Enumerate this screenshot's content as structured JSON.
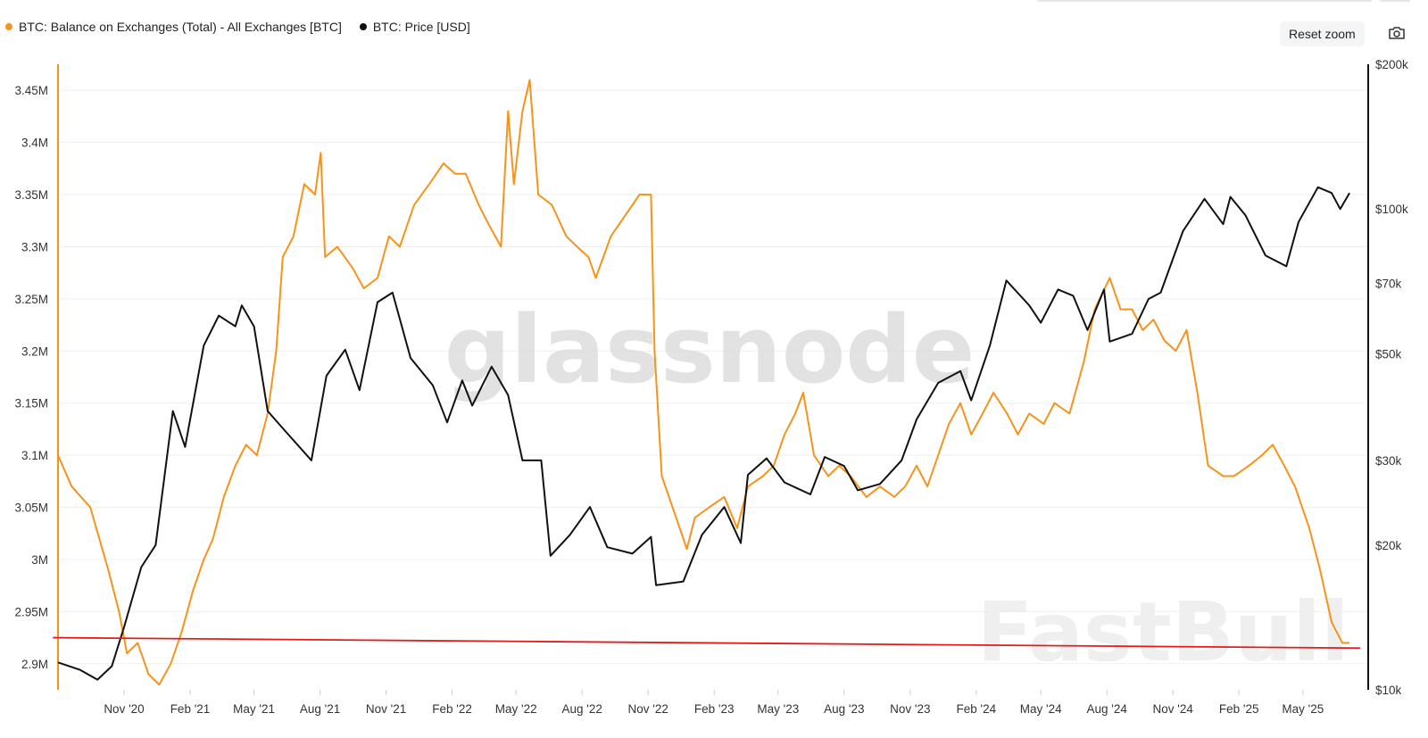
{
  "legend": [
    {
      "label": "BTC: Balance on Exchanges (Total) - All Exchanges [BTC]",
      "color": "#f7931a"
    },
    {
      "label": "BTC: Price [USD]",
      "color": "#111111"
    }
  ],
  "toolbar": {
    "reset_zoom_label": "Reset zoom",
    "camera_icon": "camera-icon"
  },
  "watermarks": {
    "center": "glassnode",
    "corner": "FastBull"
  },
  "chart_data": {
    "type": "line",
    "title": "",
    "x_range": [
      "2020-08-01",
      "2025-07-31"
    ],
    "x_ticks": [
      "Nov '20",
      "Feb '21",
      "May '21",
      "Aug '21",
      "Nov '21",
      "Feb '22",
      "May '22",
      "Aug '22",
      "Nov '22",
      "Feb '23",
      "May '23",
      "Aug '23",
      "Nov '23",
      "Feb '24",
      "May '24",
      "Aug '24",
      "Nov '24",
      "Feb '25",
      "May '25"
    ],
    "y_left": {
      "range": [
        2.875,
        3.475
      ],
      "ticks": [
        2.9,
        2.95,
        3.0,
        3.05,
        3.1,
        3.15,
        3.2,
        3.25,
        3.3,
        3.35,
        3.4,
        3.45
      ],
      "tick_labels": [
        "2.9M",
        "2.95M",
        "3M",
        "3.05M",
        "3.1M",
        "3.15M",
        "3.2M",
        "3.25M",
        "3.3M",
        "3.35M",
        "3.4M",
        "3.45M"
      ],
      "unit": "BTC (millions)"
    },
    "y_right": {
      "scale": "log",
      "range": [
        10000,
        200000
      ],
      "ticks": [
        10000,
        20000,
        30000,
        50000,
        70000,
        100000,
        200000
      ],
      "tick_labels": [
        "$10k",
        "$20k",
        "$30k",
        "$50k",
        "$70k",
        "$100k",
        "$200k"
      ]
    },
    "series": [
      {
        "name": "BTC: Balance on Exchanges (Total) - All Exchanges [BTC]",
        "axis": "left",
        "color": "#f7931a",
        "points": [
          [
            "2020-08-01",
            3.1
          ],
          [
            "2020-08-20",
            3.07
          ],
          [
            "2020-09-15",
            3.05
          ],
          [
            "2020-10-10",
            2.99
          ],
          [
            "2020-10-25",
            2.95
          ],
          [
            "2020-11-05",
            2.91
          ],
          [
            "2020-11-20",
            2.92
          ],
          [
            "2020-12-05",
            2.89
          ],
          [
            "2020-12-20",
            2.88
          ],
          [
            "2021-01-05",
            2.9
          ],
          [
            "2021-01-20",
            2.93
          ],
          [
            "2021-02-05",
            2.97
          ],
          [
            "2021-02-20",
            3.0
          ],
          [
            "2021-03-05",
            3.02
          ],
          [
            "2021-03-20",
            3.06
          ],
          [
            "2021-04-05",
            3.09
          ],
          [
            "2021-04-20",
            3.11
          ],
          [
            "2021-05-05",
            3.1
          ],
          [
            "2021-05-20",
            3.14
          ],
          [
            "2021-06-01",
            3.2
          ],
          [
            "2021-06-10",
            3.29
          ],
          [
            "2021-06-25",
            3.31
          ],
          [
            "2021-07-10",
            3.36
          ],
          [
            "2021-07-25",
            3.35
          ],
          [
            "2021-08-02",
            3.39
          ],
          [
            "2021-08-08",
            3.29
          ],
          [
            "2021-08-25",
            3.3
          ],
          [
            "2021-09-15",
            3.28
          ],
          [
            "2021-10-01",
            3.26
          ],
          [
            "2021-10-20",
            3.27
          ],
          [
            "2021-11-05",
            3.31
          ],
          [
            "2021-11-20",
            3.3
          ],
          [
            "2021-12-10",
            3.34
          ],
          [
            "2021-12-31",
            3.36
          ],
          [
            "2022-01-20",
            3.38
          ],
          [
            "2022-02-05",
            3.37
          ],
          [
            "2022-02-20",
            3.37
          ],
          [
            "2022-03-10",
            3.34
          ],
          [
            "2022-03-25",
            3.32
          ],
          [
            "2022-04-10",
            3.3
          ],
          [
            "2022-04-20",
            3.43
          ],
          [
            "2022-04-28",
            3.36
          ],
          [
            "2022-05-10",
            3.43
          ],
          [
            "2022-05-20",
            3.46
          ],
          [
            "2022-06-01",
            3.35
          ],
          [
            "2022-06-20",
            3.34
          ],
          [
            "2022-07-10",
            3.31
          ],
          [
            "2022-07-25",
            3.3
          ],
          [
            "2022-08-10",
            3.29
          ],
          [
            "2022-08-20",
            3.27
          ],
          [
            "2022-09-10",
            3.31
          ],
          [
            "2022-09-30",
            3.33
          ],
          [
            "2022-10-20",
            3.35
          ],
          [
            "2022-11-05",
            3.35
          ],
          [
            "2022-11-10",
            3.2
          ],
          [
            "2022-11-20",
            3.08
          ],
          [
            "2022-12-10",
            3.04
          ],
          [
            "2022-12-25",
            3.01
          ],
          [
            "2023-01-05",
            3.04
          ],
          [
            "2023-01-25",
            3.05
          ],
          [
            "2023-02-15",
            3.06
          ],
          [
            "2023-03-05",
            3.03
          ],
          [
            "2023-03-20",
            3.07
          ],
          [
            "2023-04-10",
            3.08
          ],
          [
            "2023-04-25",
            3.09
          ],
          [
            "2023-05-10",
            3.12
          ],
          [
            "2023-05-25",
            3.14
          ],
          [
            "2023-06-05",
            3.16
          ],
          [
            "2023-06-20",
            3.1
          ],
          [
            "2023-07-10",
            3.08
          ],
          [
            "2023-07-25",
            3.09
          ],
          [
            "2023-08-10",
            3.08
          ],
          [
            "2023-09-01",
            3.06
          ],
          [
            "2023-09-20",
            3.07
          ],
          [
            "2023-10-10",
            3.06
          ],
          [
            "2023-10-25",
            3.07
          ],
          [
            "2023-11-10",
            3.09
          ],
          [
            "2023-11-25",
            3.07
          ],
          [
            "2023-12-10",
            3.1
          ],
          [
            "2023-12-25",
            3.13
          ],
          [
            "2024-01-10",
            3.15
          ],
          [
            "2024-01-25",
            3.12
          ],
          [
            "2024-02-10",
            3.14
          ],
          [
            "2024-02-25",
            3.16
          ],
          [
            "2024-03-15",
            3.14
          ],
          [
            "2024-03-30",
            3.12
          ],
          [
            "2024-04-15",
            3.14
          ],
          [
            "2024-05-05",
            3.13
          ],
          [
            "2024-05-20",
            3.15
          ],
          [
            "2024-06-10",
            3.14
          ],
          [
            "2024-06-30",
            3.19
          ],
          [
            "2024-07-15",
            3.24
          ],
          [
            "2024-08-05",
            3.27
          ],
          [
            "2024-08-20",
            3.24
          ],
          [
            "2024-09-05",
            3.24
          ],
          [
            "2024-09-20",
            3.22
          ],
          [
            "2024-10-05",
            3.23
          ],
          [
            "2024-10-20",
            3.21
          ],
          [
            "2024-11-05",
            3.2
          ],
          [
            "2024-11-20",
            3.22
          ],
          [
            "2024-12-05",
            3.16
          ],
          [
            "2024-12-20",
            3.09
          ],
          [
            "2025-01-10",
            3.08
          ],
          [
            "2025-01-25",
            3.08
          ],
          [
            "2025-02-15",
            3.09
          ],
          [
            "2025-03-05",
            3.1
          ],
          [
            "2025-03-20",
            3.11
          ],
          [
            "2025-04-05",
            3.09
          ],
          [
            "2025-04-20",
            3.07
          ],
          [
            "2025-05-10",
            3.03
          ],
          [
            "2025-05-25",
            2.99
          ],
          [
            "2025-06-10",
            2.94
          ],
          [
            "2025-06-25",
            2.92
          ],
          [
            "2025-07-05",
            2.92
          ]
        ]
      },
      {
        "name": "BTC: Price [USD]",
        "axis": "right",
        "color": "#111111",
        "points": [
          [
            "2020-08-01",
            11400
          ],
          [
            "2020-09-01",
            11000
          ],
          [
            "2020-09-25",
            10500
          ],
          [
            "2020-10-15",
            11200
          ],
          [
            "2020-11-01",
            13500
          ],
          [
            "2020-11-25",
            18000
          ],
          [
            "2020-12-15",
            20000
          ],
          [
            "2021-01-08",
            38000
          ],
          [
            "2021-01-25",
            32000
          ],
          [
            "2021-02-20",
            52000
          ],
          [
            "2021-03-13",
            60000
          ],
          [
            "2021-04-05",
            57000
          ],
          [
            "2021-04-14",
            63000
          ],
          [
            "2021-05-01",
            57000
          ],
          [
            "2021-05-20",
            38000
          ],
          [
            "2021-06-10",
            35000
          ],
          [
            "2021-07-20",
            30000
          ],
          [
            "2021-08-10",
            45000
          ],
          [
            "2021-09-05",
            51000
          ],
          [
            "2021-09-25",
            42000
          ],
          [
            "2021-10-20",
            64000
          ],
          [
            "2021-11-10",
            67000
          ],
          [
            "2021-12-05",
            49000
          ],
          [
            "2022-01-05",
            43000
          ],
          [
            "2022-01-25",
            36000
          ],
          [
            "2022-02-15",
            44000
          ],
          [
            "2022-03-01",
            39000
          ],
          [
            "2022-03-28",
            47000
          ],
          [
            "2022-04-20",
            41000
          ],
          [
            "2022-05-10",
            30000
          ],
          [
            "2022-06-05",
            30000
          ],
          [
            "2022-06-18",
            19000
          ],
          [
            "2022-07-15",
            21000
          ],
          [
            "2022-08-12",
            24000
          ],
          [
            "2022-09-05",
            19800
          ],
          [
            "2022-10-10",
            19200
          ],
          [
            "2022-11-05",
            20800
          ],
          [
            "2022-11-12",
            16500
          ],
          [
            "2022-12-20",
            16800
          ],
          [
            "2023-01-15",
            21000
          ],
          [
            "2023-02-15",
            24000
          ],
          [
            "2023-03-10",
            20200
          ],
          [
            "2023-03-20",
            28000
          ],
          [
            "2023-04-15",
            30300
          ],
          [
            "2023-05-10",
            27000
          ],
          [
            "2023-06-15",
            25500
          ],
          [
            "2023-07-05",
            30500
          ],
          [
            "2023-08-01",
            29200
          ],
          [
            "2023-08-20",
            26000
          ],
          [
            "2023-09-20",
            26800
          ],
          [
            "2023-10-20",
            30000
          ],
          [
            "2023-11-10",
            36500
          ],
          [
            "2023-12-10",
            43500
          ],
          [
            "2024-01-10",
            46000
          ],
          [
            "2024-01-25",
            40000
          ],
          [
            "2024-02-20",
            52000
          ],
          [
            "2024-03-14",
            71000
          ],
          [
            "2024-04-15",
            63000
          ],
          [
            "2024-05-01",
            58000
          ],
          [
            "2024-05-25",
            68000
          ],
          [
            "2024-06-15",
            66000
          ],
          [
            "2024-07-05",
            56000
          ],
          [
            "2024-07-28",
            68000
          ],
          [
            "2024-08-05",
            53000
          ],
          [
            "2024-09-05",
            55000
          ],
          [
            "2024-09-28",
            65000
          ],
          [
            "2024-10-15",
            67000
          ],
          [
            "2024-11-15",
            90000
          ],
          [
            "2024-12-15",
            105000
          ],
          [
            "2025-01-10",
            93000
          ],
          [
            "2025-01-20",
            106000
          ],
          [
            "2025-02-10",
            97000
          ],
          [
            "2025-03-10",
            80000
          ],
          [
            "2025-04-08",
            76000
          ],
          [
            "2025-04-25",
            94000
          ],
          [
            "2025-05-22",
            111000
          ],
          [
            "2025-06-10",
            108000
          ],
          [
            "2025-06-22",
            100000
          ],
          [
            "2025-07-05",
            108000
          ]
        ]
      }
    ],
    "annotations": [
      {
        "type": "trendline",
        "color": "#e31b1b",
        "from": [
          "2020-07-25",
          2.925
        ],
        "to": [
          "2025-07-20",
          2.915
        ]
      }
    ],
    "grid": true,
    "legend_position": "top-left"
  }
}
